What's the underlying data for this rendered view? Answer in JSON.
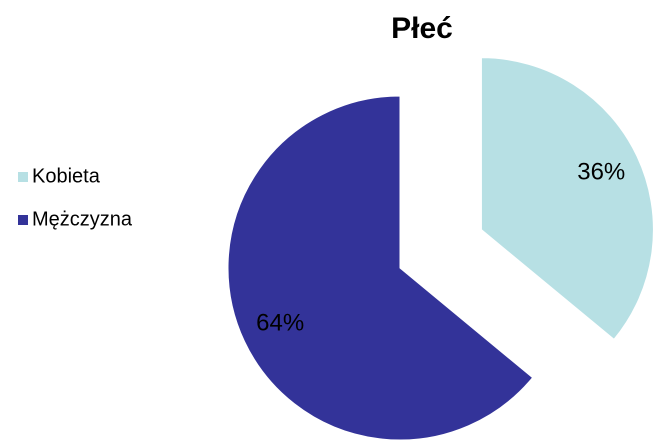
{
  "chart_data": {
    "type": "pie",
    "title": "Płeć",
    "categories": [
      "Kobieta",
      "Mężczyzna"
    ],
    "values": [
      36,
      64
    ],
    "value_labels": [
      "36%",
      "64%"
    ],
    "colors": [
      "#b7e0e4",
      "#333399"
    ],
    "exploded": [
      true,
      false
    ],
    "legend": "left"
  }
}
